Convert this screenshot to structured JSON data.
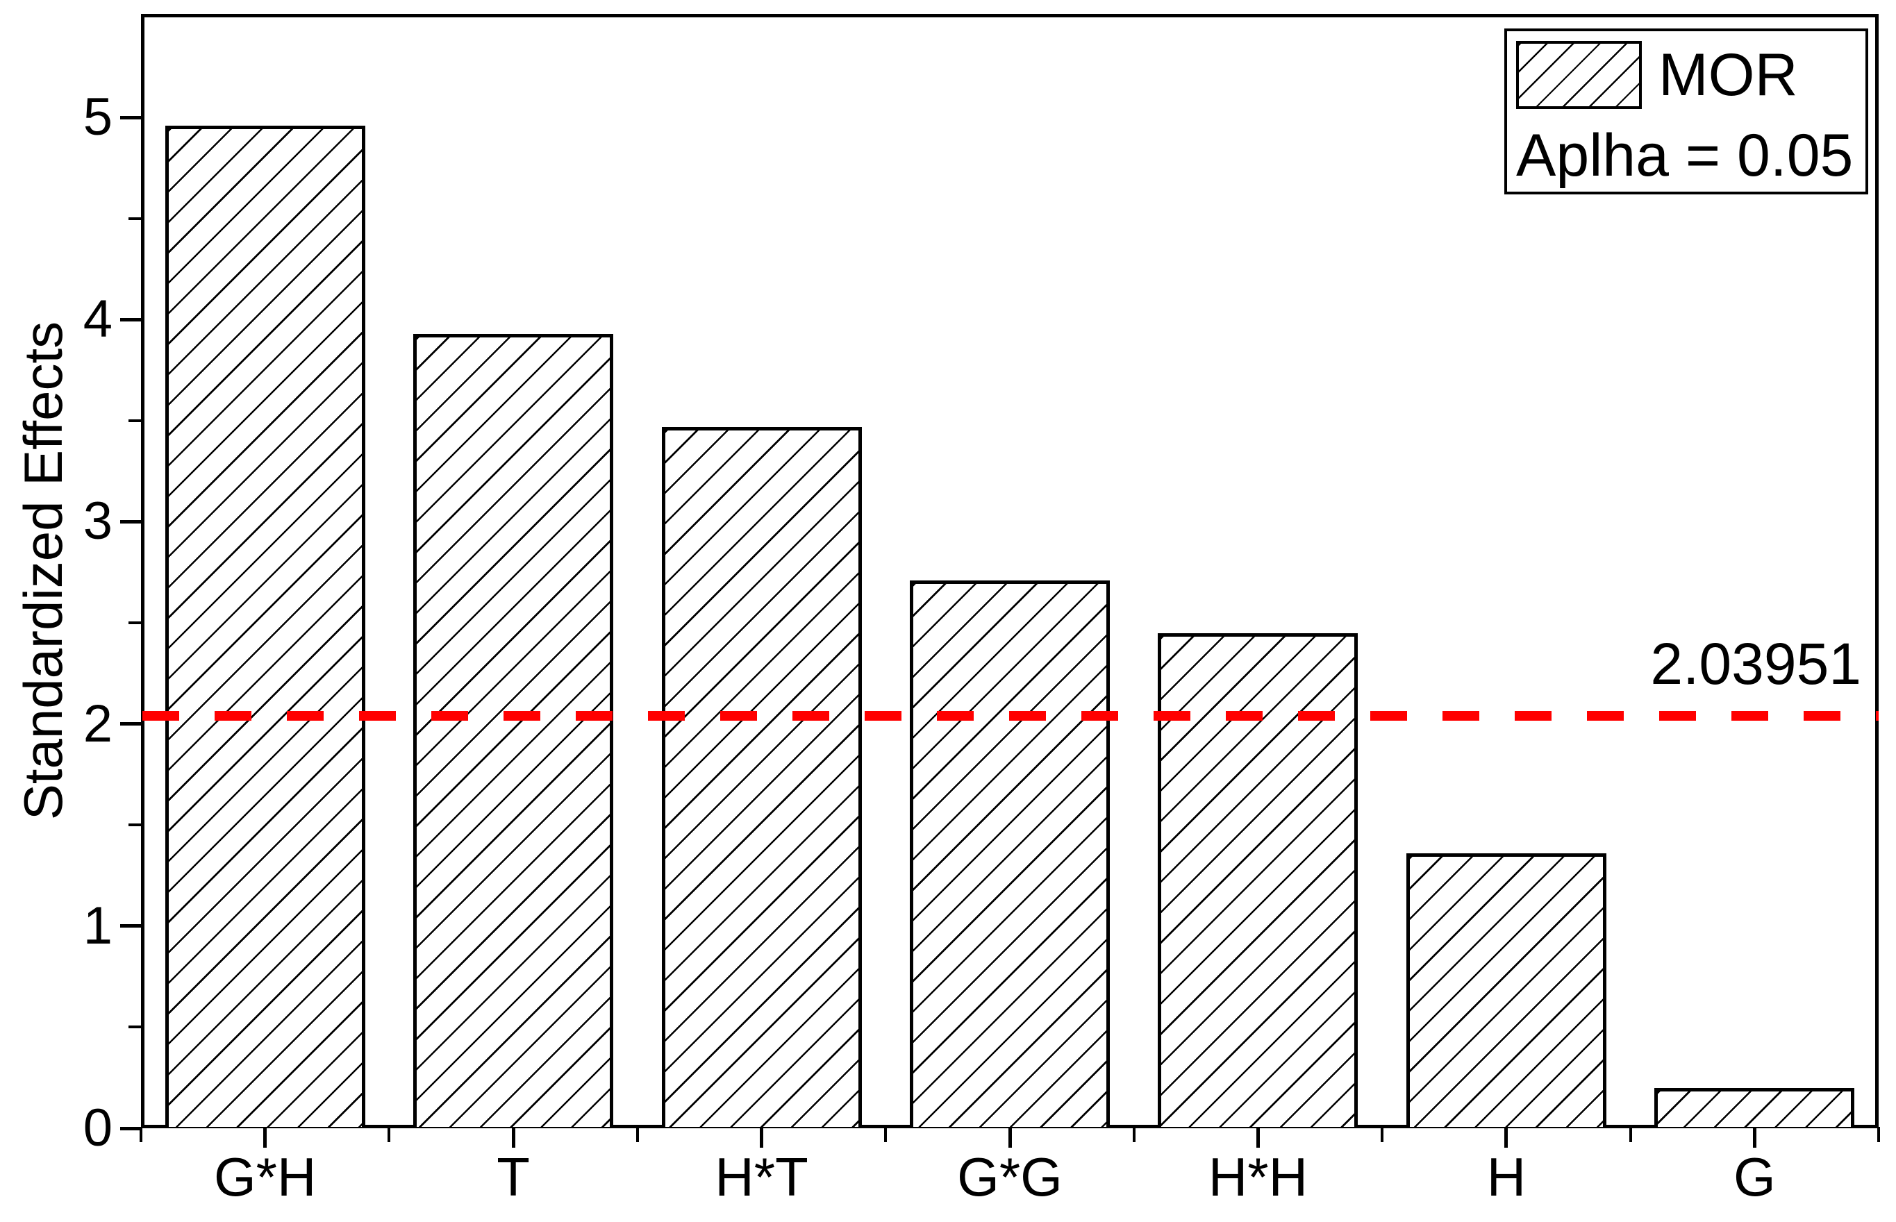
{
  "chart_data": {
    "type": "bar",
    "title": "",
    "categories": [
      "G*H",
      "T",
      "H*T",
      "G*G",
      "H*H",
      "H",
      "G"
    ],
    "values": [
      4.96,
      3.93,
      3.47,
      2.71,
      2.45,
      1.36,
      0.2
    ],
    "xlabel": "",
    "ylabel": "Standardized Effects",
    "ylim": [
      0,
      5.51
    ],
    "yticks_major": [
      0,
      1,
      2,
      3,
      4,
      5
    ],
    "yticks_minor": [
      0.5,
      1.5,
      2.5,
      3.5,
      4.5
    ],
    "grid": false,
    "bar_style": {
      "fill": "#ffffff",
      "hatch": "diagonal-forward",
      "edge_color": "#000000"
    },
    "reference_line": {
      "value": 2.03951,
      "label": "2.03951",
      "color": "#ff0000",
      "style": "dashed"
    },
    "legend": {
      "position": "top-right",
      "entries": [
        {
          "label": "MOR",
          "swatch": "diagonal-hatch"
        }
      ],
      "note": "Aplha = 0.05"
    }
  }
}
